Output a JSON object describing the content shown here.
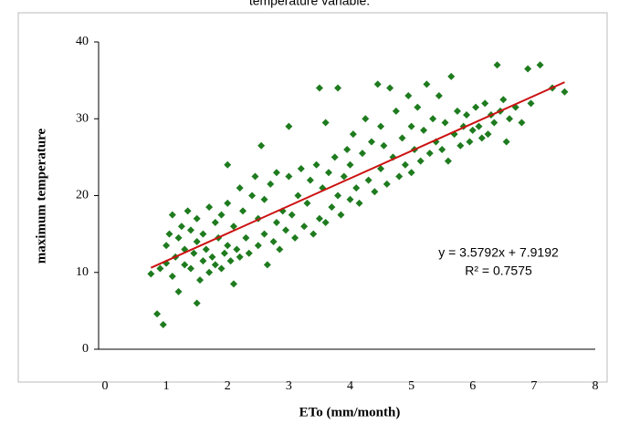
{
  "chart_data": {
    "type": "scatter",
    "title": "temperature variable.",
    "xlabel": "ETo (mm/month)",
    "ylabel": "maximum temperature",
    "xlim": [
      0,
      8
    ],
    "ylim": [
      0,
      40
    ],
    "xticks": [
      0,
      1,
      2,
      3,
      4,
      5,
      6,
      7,
      8
    ],
    "yticks": [
      0,
      10,
      20,
      30,
      40
    ],
    "grid": false,
    "series": [
      {
        "color": "#1e7b1e",
        "x": [
          0.75,
          0.85,
          0.95,
          0.9,
          1.0,
          1.0,
          1.05,
          1.1,
          1.1,
          1.15,
          1.2,
          1.2,
          1.25,
          1.3,
          1.3,
          1.35,
          1.4,
          1.4,
          1.45,
          1.5,
          1.5,
          1.5,
          1.55,
          1.6,
          1.6,
          1.65,
          1.7,
          1.7,
          1.75,
          1.8,
          1.8,
          1.85,
          1.9,
          1.9,
          1.95,
          2.0,
          2.0,
          2.0,
          2.05,
          2.1,
          2.1,
          2.15,
          2.2,
          2.2,
          2.25,
          2.3,
          2.35,
          2.4,
          2.45,
          2.5,
          2.5,
          2.55,
          2.6,
          2.6,
          2.65,
          2.7,
          2.75,
          2.8,
          2.8,
          2.85,
          2.9,
          2.95,
          3.0,
          3.0,
          3.05,
          3.1,
          3.15,
          3.2,
          3.25,
          3.3,
          3.35,
          3.4,
          3.45,
          3.5,
          3.5,
          3.55,
          3.6,
          3.6,
          3.65,
          3.7,
          3.75,
          3.8,
          3.8,
          3.85,
          3.9,
          3.95,
          4.0,
          4.0,
          4.05,
          4.1,
          4.15,
          4.2,
          4.25,
          4.3,
          4.35,
          4.4,
          4.45,
          4.5,
          4.5,
          4.55,
          4.6,
          4.65,
          4.7,
          4.75,
          4.8,
          4.85,
          4.9,
          4.95,
          5.0,
          5.0,
          5.05,
          5.1,
          5.15,
          5.2,
          5.25,
          5.3,
          5.35,
          5.4,
          5.45,
          5.5,
          5.55,
          5.6,
          5.65,
          5.7,
          5.75,
          5.8,
          5.85,
          5.9,
          5.95,
          6.0,
          6.05,
          6.1,
          6.15,
          6.2,
          6.25,
          6.3,
          6.35,
          6.4,
          6.45,
          6.5,
          6.55,
          6.6,
          6.7,
          6.8,
          6.9,
          6.95,
          7.1,
          7.3,
          7.5
        ],
        "values": [
          9.8,
          4.6,
          3.2,
          10.5,
          11.2,
          13.5,
          15.0,
          17.5,
          9.5,
          12.0,
          7.5,
          14.5,
          16.0,
          11.0,
          13.0,
          18.0,
          15.5,
          10.5,
          12.5,
          6.0,
          14.0,
          17.0,
          9.0,
          11.5,
          15.0,
          13.0,
          10.0,
          18.5,
          12.0,
          16.5,
          11.0,
          14.5,
          10.5,
          17.5,
          12.5,
          24.0,
          19.0,
          13.5,
          11.5,
          8.5,
          16.0,
          13.0,
          21.0,
          12.0,
          18.0,
          14.5,
          12.5,
          20.0,
          22.5,
          13.5,
          17.0,
          26.5,
          15.0,
          19.5,
          11.0,
          21.5,
          14.0,
          16.5,
          23.0,
          13.0,
          18.0,
          15.5,
          29.0,
          22.5,
          17.5,
          14.5,
          20.0,
          23.5,
          16.0,
          19.0,
          22.0,
          15.0,
          24.0,
          34.0,
          17.0,
          21.0,
          29.5,
          16.5,
          23.0,
          18.5,
          25.0,
          34.0,
          20.0,
          17.5,
          22.5,
          26.0,
          19.5,
          24.0,
          28.0,
          21.0,
          19.0,
          25.5,
          30.0,
          22.0,
          27.0,
          20.5,
          34.5,
          23.5,
          29.0,
          26.5,
          21.5,
          34.0,
          25.0,
          31.0,
          22.5,
          27.5,
          24.0,
          33.0,
          29.0,
          23.0,
          26.0,
          31.5,
          24.5,
          28.5,
          34.5,
          25.5,
          30.0,
          27.0,
          33.0,
          26.0,
          29.5,
          24.5,
          35.5,
          28.0,
          31.0,
          26.5,
          29.0,
          30.5,
          27.0,
          28.5,
          31.5,
          29.0,
          27.5,
          32.0,
          28.0,
          30.5,
          29.5,
          37.0,
          31.0,
          32.5,
          27.0,
          30.0,
          31.5,
          29.5,
          36.5,
          32.0,
          37.0,
          34.0,
          33.5
        ]
      }
    ],
    "trendline": {
      "slope": 3.5792,
      "intercept": 7.9192,
      "x_start": 0.75,
      "x_end": 7.5,
      "color": "#cc1111"
    },
    "annotations": [
      "y = 3.5792x + 7.9192",
      "R² = 0.7575"
    ]
  }
}
